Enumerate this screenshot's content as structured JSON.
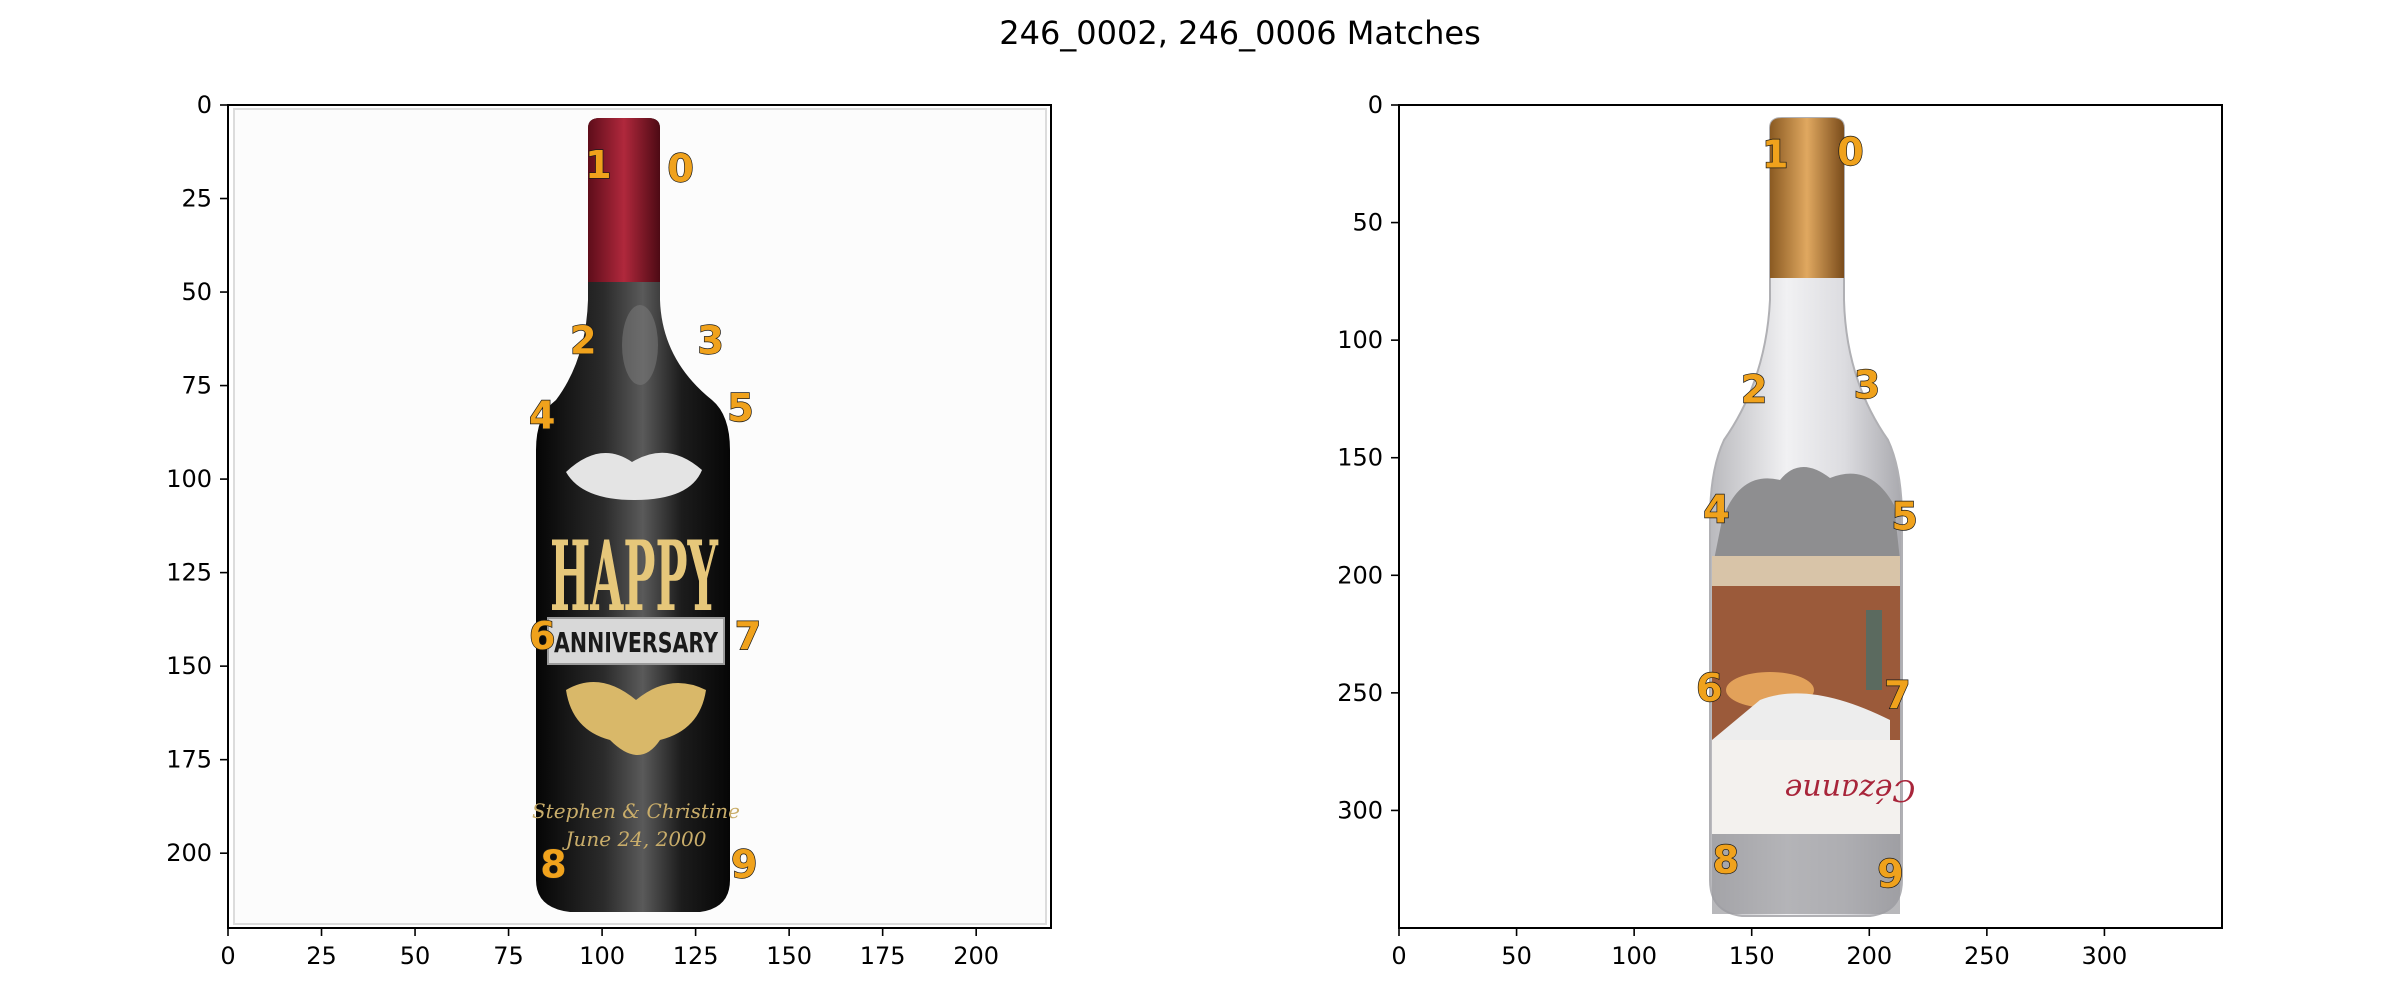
{
  "chart_data": {
    "type": "scatter",
    "title": "246_0002, 246_0006 Matches",
    "point_color": "#f0a21c",
    "outline_color": "#1a1a1a",
    "panels": [
      {
        "name": "left",
        "xlim": [
          0,
          220
        ],
        "ylim": [
          220,
          0
        ],
        "xticks": [
          0,
          25,
          50,
          75,
          100,
          125,
          150,
          175,
          200
        ],
        "yticks": [
          0,
          25,
          50,
          75,
          100,
          125,
          150,
          175,
          200
        ],
        "image": "wine-bottle-happy-anniversary",
        "keypoints": [
          {
            "label": "0",
            "x": 121,
            "y": 17
          },
          {
            "label": "1",
            "x": 99,
            "y": 16
          },
          {
            "label": "2",
            "x": 95,
            "y": 63
          },
          {
            "label": "3",
            "x": 129,
            "y": 63
          },
          {
            "label": "4",
            "x": 84,
            "y": 83
          },
          {
            "label": "5",
            "x": 137,
            "y": 81
          },
          {
            "label": "6",
            "x": 84,
            "y": 142
          },
          {
            "label": "7",
            "x": 139,
            "y": 142
          },
          {
            "label": "8",
            "x": 87,
            "y": 203
          },
          {
            "label": "9",
            "x": 138,
            "y": 203
          }
        ]
      },
      {
        "name": "right",
        "xlim": [
          0,
          350
        ],
        "ylim": [
          350,
          0
        ],
        "xticks": [
          0,
          50,
          100,
          150,
          200,
          250,
          300
        ],
        "yticks": [
          0,
          50,
          100,
          150,
          200,
          250,
          300
        ],
        "image": "glass-bottle-puzzle",
        "keypoints": [
          {
            "label": "0",
            "x": 192,
            "y": 20
          },
          {
            "label": "1",
            "x": 160,
            "y": 21
          },
          {
            "label": "2",
            "x": 151,
            "y": 121
          },
          {
            "label": "3",
            "x": 199,
            "y": 119
          },
          {
            "label": "4",
            "x": 135,
            "y": 172
          },
          {
            "label": "5",
            "x": 215,
            "y": 175
          },
          {
            "label": "6",
            "x": 132,
            "y": 248
          },
          {
            "label": "7",
            "x": 212,
            "y": 251
          },
          {
            "label": "8",
            "x": 139,
            "y": 321
          },
          {
            "label": "9",
            "x": 209,
            "y": 327
          }
        ]
      }
    ]
  }
}
